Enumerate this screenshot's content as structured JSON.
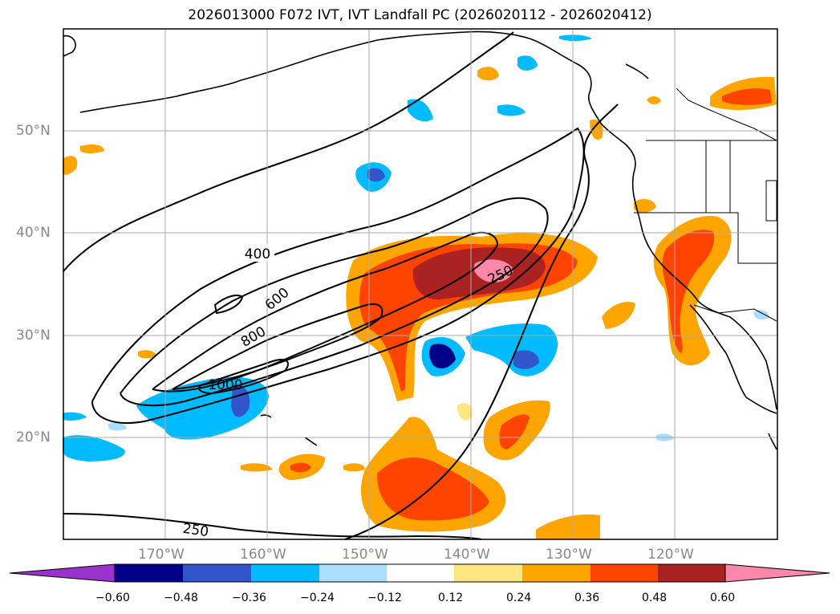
{
  "title": "2026013000 F072 IVT, IVT Landfall PC (2026020112 - 2026020412)",
  "map": {
    "lat_labels": [
      "50°N",
      "40°N",
      "30°N",
      "20°N"
    ],
    "lon_labels": [
      "170°W",
      "160°W",
      "150°W",
      "140°W",
      "130°W",
      "120°W"
    ],
    "contour_labels": [
      "400",
      "600",
      "800",
      "1000",
      "250",
      "250"
    ]
  },
  "colorbar": {
    "ticks": [
      "−0.60",
      "−0.48",
      "−0.36",
      "−0.24",
      "−0.12",
      "0.12",
      "0.24",
      "0.36",
      "0.48",
      "0.60"
    ],
    "colors": [
      "#9933cc",
      "#000088",
      "#3355cc",
      "#00bbff",
      "#aaddff",
      "#ffffff",
      "#ffe680",
      "#ffa500",
      "#ff4400",
      "#aa2222",
      "#ff88aa"
    ]
  }
}
